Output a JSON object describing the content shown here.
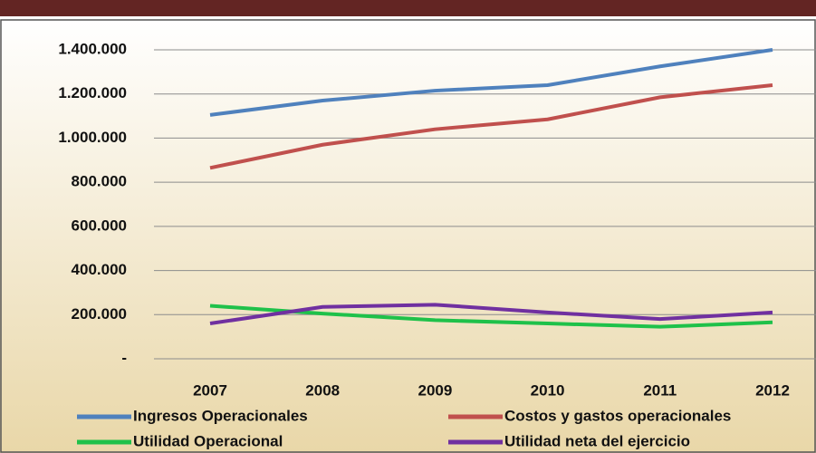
{
  "chart_data": {
    "type": "line",
    "categories": [
      "2007",
      "2008",
      "2009",
      "2010",
      "2011",
      "2012"
    ],
    "series": [
      {
        "name": "Ingresos Operacionales",
        "color": "#4f81bd",
        "values": [
          1105000,
          1170000,
          1215000,
          1240000,
          1325000,
          1400000
        ]
      },
      {
        "name": "Costos y gastos operacionales",
        "color": "#c0504d",
        "values": [
          865000,
          970000,
          1040000,
          1085000,
          1185000,
          1240000
        ]
      },
      {
        "name": "Utilidad Operacional",
        "color": "#1fc14a",
        "values": [
          240000,
          205000,
          175000,
          160000,
          145000,
          165000
        ]
      },
      {
        "name": "Utilidad neta del ejercicio",
        "color": "#7030a0",
        "values": [
          160000,
          235000,
          245000,
          210000,
          180000,
          210000
        ]
      }
    ],
    "ylim": [
      0,
      1400000
    ],
    "yticks": [
      {
        "value": 0,
        "label": "-"
      },
      {
        "value": 200000,
        "label": "200.000"
      },
      {
        "value": 400000,
        "label": "400.000"
      },
      {
        "value": 600000,
        "label": "600.000"
      },
      {
        "value": 800000,
        "label": "800.000"
      },
      {
        "value": 1000000,
        "label": "1.000.000"
      },
      {
        "value": 1200000,
        "label": "1.200.000"
      },
      {
        "value": 1400000,
        "label": "1.400.000"
      }
    ],
    "grid": true,
    "legend": "bottom"
  }
}
